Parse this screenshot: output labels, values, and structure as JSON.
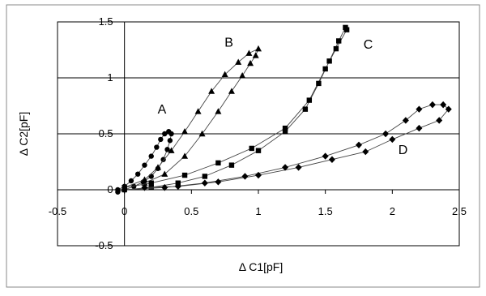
{
  "chart_data": {
    "type": "scatter",
    "title": "",
    "xlabel": "Δ C1[pF]",
    "ylabel": "Δ C2[pF]",
    "xlim": [
      -0.5,
      2.5
    ],
    "ylim": [
      -0.5,
      1.5
    ],
    "x_ticks": [
      "-0.5",
      "0",
      "0.5",
      "1",
      "1.5",
      "2",
      "2.5"
    ],
    "y_ticks": [
      "1.5",
      "1",
      "0.5",
      "0",
      "-0.5"
    ],
    "y_tick_values": [
      1.5,
      1,
      0.5,
      0,
      -0.5
    ],
    "x_tick_values": [
      -0.5,
      0,
      0.5,
      1,
      1.5,
      2,
      2.5
    ],
    "grid": "horizontal",
    "series": [
      {
        "label": "A",
        "label_at": [
          0.28,
          0.68
        ],
        "marker": "circle",
        "points": [
          [
            -0.05,
            0.0
          ],
          [
            0.0,
            0.03
          ],
          [
            0.05,
            0.08
          ],
          [
            0.1,
            0.14
          ],
          [
            0.15,
            0.22
          ],
          [
            0.2,
            0.3
          ],
          [
            0.24,
            0.38
          ],
          [
            0.27,
            0.45
          ],
          [
            0.3,
            0.5
          ],
          [
            0.33,
            0.52
          ],
          [
            0.35,
            0.5
          ],
          [
            0.34,
            0.44
          ],
          [
            0.32,
            0.36
          ],
          [
            0.29,
            0.27
          ],
          [
            0.25,
            0.19
          ],
          [
            0.2,
            0.12
          ],
          [
            0.14,
            0.07
          ],
          [
            0.07,
            0.03
          ],
          [
            0.0,
            0.0
          ],
          [
            -0.05,
            -0.02
          ]
        ]
      },
      {
        "label": "B",
        "label_at": [
          0.78,
          1.28
        ],
        "marker": "triangle",
        "points": [
          [
            0.0,
            0.02
          ],
          [
            0.15,
            0.09
          ],
          [
            0.25,
            0.2
          ],
          [
            0.35,
            0.35
          ],
          [
            0.45,
            0.52
          ],
          [
            0.55,
            0.7
          ],
          [
            0.65,
            0.88
          ],
          [
            0.75,
            1.03
          ],
          [
            0.85,
            1.14
          ],
          [
            0.93,
            1.22
          ],
          [
            1.0,
            1.26
          ],
          [
            0.98,
            1.2
          ],
          [
            0.94,
            1.13
          ],
          [
            0.88,
            1.02
          ],
          [
            0.8,
            0.88
          ],
          [
            0.7,
            0.7
          ],
          [
            0.58,
            0.5
          ],
          [
            0.45,
            0.3
          ],
          [
            0.3,
            0.14
          ],
          [
            0.15,
            0.06
          ]
        ]
      },
      {
        "label": "C",
        "label_at": [
          1.82,
          1.26
        ],
        "marker": "square",
        "points": [
          [
            0.0,
            0.0
          ],
          [
            0.2,
            0.02
          ],
          [
            0.4,
            0.06
          ],
          [
            0.6,
            0.12
          ],
          [
            0.8,
            0.22
          ],
          [
            1.0,
            0.35
          ],
          [
            1.2,
            0.52
          ],
          [
            1.35,
            0.72
          ],
          [
            1.45,
            0.95
          ],
          [
            1.53,
            1.15
          ],
          [
            1.6,
            1.33
          ],
          [
            1.65,
            1.45
          ],
          [
            1.66,
            1.43
          ],
          [
            1.58,
            1.26
          ],
          [
            1.5,
            1.08
          ],
          [
            1.38,
            0.8
          ],
          [
            1.2,
            0.55
          ],
          [
            0.95,
            0.37
          ],
          [
            0.7,
            0.24
          ],
          [
            0.45,
            0.13
          ],
          [
            0.2,
            0.06
          ],
          [
            0.0,
            0.02
          ]
        ]
      },
      {
        "label": "D",
        "label_at": [
          2.08,
          0.32
        ],
        "marker": "diamond",
        "points": [
          [
            0.0,
            0.0
          ],
          [
            0.3,
            0.02
          ],
          [
            0.6,
            0.06
          ],
          [
            0.9,
            0.12
          ],
          [
            1.2,
            0.2
          ],
          [
            1.5,
            0.3
          ],
          [
            1.75,
            0.4
          ],
          [
            1.95,
            0.5
          ],
          [
            2.1,
            0.62
          ],
          [
            2.2,
            0.72
          ],
          [
            2.3,
            0.76
          ],
          [
            2.38,
            0.76
          ],
          [
            2.42,
            0.72
          ],
          [
            2.35,
            0.62
          ],
          [
            2.2,
            0.55
          ],
          [
            2.0,
            0.45
          ],
          [
            1.8,
            0.34
          ],
          [
            1.55,
            0.27
          ],
          [
            1.3,
            0.2
          ],
          [
            1.0,
            0.13
          ],
          [
            0.7,
            0.07
          ],
          [
            0.4,
            0.03
          ],
          [
            0.15,
            0.02
          ]
        ]
      }
    ]
  }
}
